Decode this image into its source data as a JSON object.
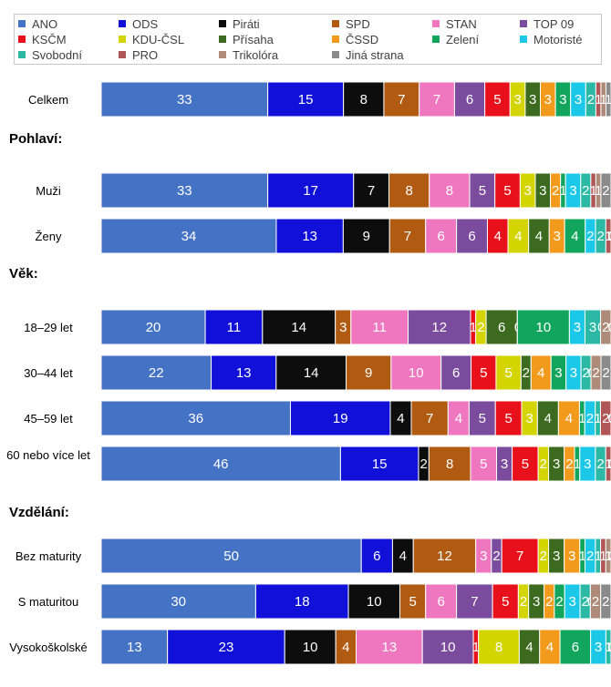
{
  "legend": [
    {
      "name": "ANO",
      "color": "#4472C4"
    },
    {
      "name": "ODS",
      "color": "#1010D8"
    },
    {
      "name": "Piráti",
      "color": "#0d0d0d"
    },
    {
      "name": "SPD",
      "color": "#B05A12"
    },
    {
      "name": "STAN",
      "color": "#EF77C0"
    },
    {
      "name": "TOP 09",
      "color": "#7B4B9E"
    },
    {
      "name": "KSČM",
      "color": "#E8101A"
    },
    {
      "name": "KDU-ČSL",
      "color": "#D4D400"
    },
    {
      "name": "Přísaha",
      "color": "#3C6A1E"
    },
    {
      "name": "ČSSD",
      "color": "#F29A1C"
    },
    {
      "name": "Zelení",
      "color": "#11A65C"
    },
    {
      "name": "Motoristé",
      "color": "#1CC8E8"
    },
    {
      "name": "Svobodní",
      "color": "#2BB8A4"
    },
    {
      "name": "PRO",
      "color": "#B15656"
    },
    {
      "name": "Trikolóra",
      "color": "#AE8A78"
    },
    {
      "name": "Jiná strana",
      "color": "#8A8A8A"
    }
  ],
  "sections": {
    "pohlavi": "Pohlaví:",
    "vek": "Věk:",
    "vzdelani": "Vzdělání:"
  },
  "chart_data": {
    "type": "bar",
    "orientation": "horizontal-stacked",
    "series": [
      "ANO",
      "ODS",
      "Piráti",
      "SPD",
      "STAN",
      "TOP 09",
      "KSČM",
      "KDU-ČSL",
      "Přísaha",
      "ČSSD",
      "Zelení",
      "Motoristé",
      "Svobodní",
      "PRO",
      "Trikolóra",
      "Jiná strana"
    ],
    "rows": [
      {
        "label": "Celkem",
        "values": [
          33,
          15,
          8,
          7,
          7,
          6,
          5,
          3,
          3,
          3,
          3,
          3,
          2,
          1,
          1,
          1
        ]
      },
      {
        "label": "Muži",
        "values": [
          33,
          17,
          7,
          8,
          8,
          5,
          5,
          3,
          3,
          2,
          1,
          3,
          2,
          1,
          1,
          2
        ]
      },
      {
        "label": "Ženy",
        "values": [
          34,
          13,
          9,
          7,
          6,
          6,
          4,
          4,
          4,
          3,
          4,
          2,
          2,
          1,
          0,
          0
        ]
      },
      {
        "label": "18–29 let",
        "values": [
          20,
          11,
          14,
          3,
          11,
          12,
          1,
          2,
          6,
          0,
          10,
          3,
          3,
          0,
          2,
          0
        ]
      },
      {
        "label": "30–44 let",
        "values": [
          22,
          13,
          14,
          9,
          10,
          6,
          5,
          5,
          2,
          4,
          3,
          3,
          2,
          0,
          2,
          2
        ]
      },
      {
        "label": "45–59 let",
        "values": [
          36,
          19,
          4,
          7,
          4,
          5,
          5,
          3,
          4,
          4,
          1,
          2,
          1,
          2,
          0,
          0
        ]
      },
      {
        "label": "60 nebo více let",
        "values": [
          46,
          15,
          2,
          8,
          5,
          3,
          5,
          2,
          3,
          2,
          1,
          3,
          2,
          1,
          0,
          0
        ]
      },
      {
        "label": "Bez maturity",
        "values": [
          50,
          6,
          4,
          12,
          3,
          2,
          7,
          2,
          3,
          3,
          1,
          2,
          1,
          1,
          1,
          0
        ]
      },
      {
        "label": "S maturitou",
        "values": [
          30,
          18,
          10,
          5,
          6,
          7,
          5,
          2,
          3,
          2,
          2,
          3,
          2,
          0,
          2,
          2
        ]
      },
      {
        "label": "Vysokoškolské",
        "values": [
          13,
          23,
          10,
          4,
          13,
          10,
          1,
          8,
          4,
          4,
          6,
          3,
          1,
          0,
          0,
          0
        ]
      }
    ]
  }
}
